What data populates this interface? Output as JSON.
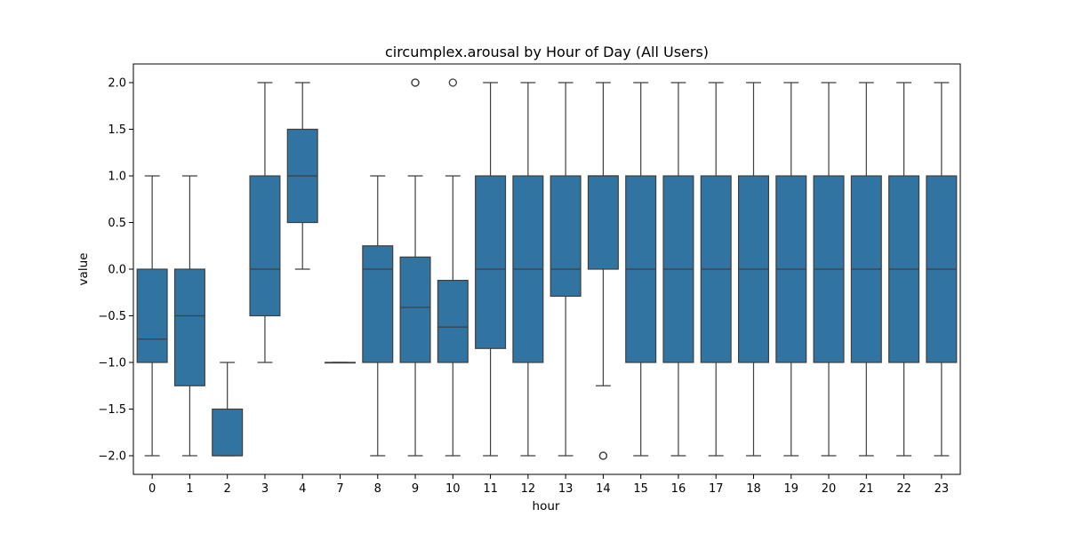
{
  "chart_data": {
    "type": "boxplot",
    "title": "circumplex.arousal by Hour of Day (All Users)",
    "xlabel": "hour",
    "ylabel": "value",
    "ylim": [
      -2.2,
      2.2
    ],
    "yticks": [
      "2.0",
      "1.5",
      "1.0",
      "0.5",
      "0.0",
      "−0.5",
      "−1.0",
      "−1.5",
      "−2.0"
    ],
    "ytick_values": [
      2.0,
      1.5,
      1.0,
      0.5,
      0.0,
      -0.5,
      -1.0,
      -1.5,
      -2.0
    ],
    "grid": false,
    "color": "#3274a1",
    "edge_color": "#3f3f3f",
    "categories": [
      "0",
      "1",
      "2",
      "3",
      "4",
      "7",
      "8",
      "9",
      "10",
      "11",
      "12",
      "13",
      "14",
      "15",
      "16",
      "17",
      "18",
      "19",
      "20",
      "21",
      "22",
      "23"
    ],
    "boxes": [
      {
        "hour": "0",
        "whisker_low": -2.0,
        "q1": -1.0,
        "median": -0.75,
        "q3": 0.0,
        "whisker_high": 1.0,
        "outliers": []
      },
      {
        "hour": "1",
        "whisker_low": -2.0,
        "q1": -1.25,
        "median": -0.5,
        "q3": 0.0,
        "whisker_high": 1.0,
        "outliers": []
      },
      {
        "hour": "2",
        "whisker_low": -2.0,
        "q1": -2.0,
        "median": -2.0,
        "q3": -1.5,
        "whisker_high": -1.0,
        "outliers": []
      },
      {
        "hour": "3",
        "whisker_low": -1.0,
        "q1": -0.5,
        "median": 0.0,
        "q3": 1.0,
        "whisker_high": 2.0,
        "outliers": []
      },
      {
        "hour": "4",
        "whisker_low": 0.0,
        "q1": 0.5,
        "median": 1.0,
        "q3": 1.5,
        "whisker_high": 2.0,
        "outliers": []
      },
      {
        "hour": "7",
        "whisker_low": -1.0,
        "q1": -1.0,
        "median": -1.0,
        "q3": -1.0,
        "whisker_high": -1.0,
        "outliers": []
      },
      {
        "hour": "8",
        "whisker_low": -2.0,
        "q1": -1.0,
        "median": 0.0,
        "q3": 0.25,
        "whisker_high": 1.0,
        "outliers": []
      },
      {
        "hour": "9",
        "whisker_low": -2.0,
        "q1": -1.0,
        "median": -0.41,
        "q3": 0.13,
        "whisker_high": 1.0,
        "outliers": [
          2.0,
          2.0
        ]
      },
      {
        "hour": "10",
        "whisker_low": -2.0,
        "q1": -1.0,
        "median": -0.62,
        "q3": -0.12,
        "whisker_high": 1.0,
        "outliers": [
          2.0
        ]
      },
      {
        "hour": "11",
        "whisker_low": -2.0,
        "q1": -0.85,
        "median": 0.0,
        "q3": 1.0,
        "whisker_high": 2.0,
        "outliers": []
      },
      {
        "hour": "12",
        "whisker_low": -2.0,
        "q1": -1.0,
        "median": 0.0,
        "q3": 1.0,
        "whisker_high": 2.0,
        "outliers": []
      },
      {
        "hour": "13",
        "whisker_low": -2.0,
        "q1": -0.29,
        "median": 0.0,
        "q3": 1.0,
        "whisker_high": 2.0,
        "outliers": []
      },
      {
        "hour": "14",
        "whisker_low": -1.25,
        "q1": 0.0,
        "median": 1.0,
        "q3": 1.0,
        "whisker_high": 2.0,
        "outliers": [
          -2.0,
          -2.0
        ]
      },
      {
        "hour": "15",
        "whisker_low": -2.0,
        "q1": -1.0,
        "median": 0.0,
        "q3": 1.0,
        "whisker_high": 2.0,
        "outliers": []
      },
      {
        "hour": "16",
        "whisker_low": -2.0,
        "q1": -1.0,
        "median": 0.0,
        "q3": 1.0,
        "whisker_high": 2.0,
        "outliers": []
      },
      {
        "hour": "17",
        "whisker_low": -2.0,
        "q1": -1.0,
        "median": 0.0,
        "q3": 1.0,
        "whisker_high": 2.0,
        "outliers": []
      },
      {
        "hour": "18",
        "whisker_low": -2.0,
        "q1": -1.0,
        "median": 0.0,
        "q3": 1.0,
        "whisker_high": 2.0,
        "outliers": []
      },
      {
        "hour": "19",
        "whisker_low": -2.0,
        "q1": -1.0,
        "median": 0.0,
        "q3": 1.0,
        "whisker_high": 2.0,
        "outliers": []
      },
      {
        "hour": "20",
        "whisker_low": -2.0,
        "q1": -1.0,
        "median": 0.0,
        "q3": 1.0,
        "whisker_high": 2.0,
        "outliers": []
      },
      {
        "hour": "21",
        "whisker_low": -2.0,
        "q1": -1.0,
        "median": 0.0,
        "q3": 1.0,
        "whisker_high": 2.0,
        "outliers": []
      },
      {
        "hour": "22",
        "whisker_low": -2.0,
        "q1": -1.0,
        "median": 0.0,
        "q3": 1.0,
        "whisker_high": 2.0,
        "outliers": []
      },
      {
        "hour": "23",
        "whisker_low": -2.0,
        "q1": -1.0,
        "median": 0.0,
        "q3": 1.0,
        "whisker_high": 2.0,
        "outliers": []
      }
    ]
  }
}
